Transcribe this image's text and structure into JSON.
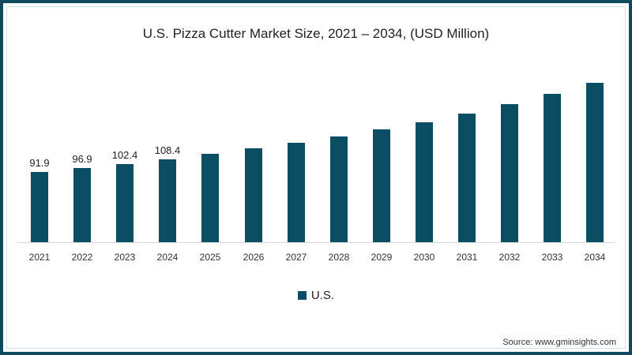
{
  "title": "U.S. Pizza Cutter Market Size, 2021 – 2034, (USD Million)",
  "legend": {
    "label": "U.S.",
    "color": "#0b4d63"
  },
  "source": "Source: www.gminsights.com",
  "chart_data": {
    "type": "bar",
    "title": "U.S. Pizza Cutter Market Size, 2021 – 2034, (USD Million)",
    "xlabel": "",
    "ylabel": "USD Million",
    "categories": [
      "2021",
      "2022",
      "2023",
      "2024",
      "2025",
      "2026",
      "2027",
      "2028",
      "2029",
      "2030",
      "2031",
      "2032",
      "2033",
      "2034"
    ],
    "series": [
      {
        "name": "U.S.",
        "color": "#0b4d63",
        "values": [
          91.9,
          96.9,
          102.4,
          108.4,
          115.7,
          122.9,
          130.1,
          138.4,
          147.7,
          157.0,
          168.3,
          180.7,
          194.1,
          208.6
        ]
      }
    ],
    "data_labels": [
      "91.9",
      "96.9",
      "102.4",
      "108.4",
      "",
      "",
      "",
      "",
      "",
      "",
      "",
      "",
      "",
      ""
    ],
    "ylim": [
      0,
      220
    ],
    "grid": false,
    "legend_position": "bottom",
    "y_axis_visible": false
  }
}
